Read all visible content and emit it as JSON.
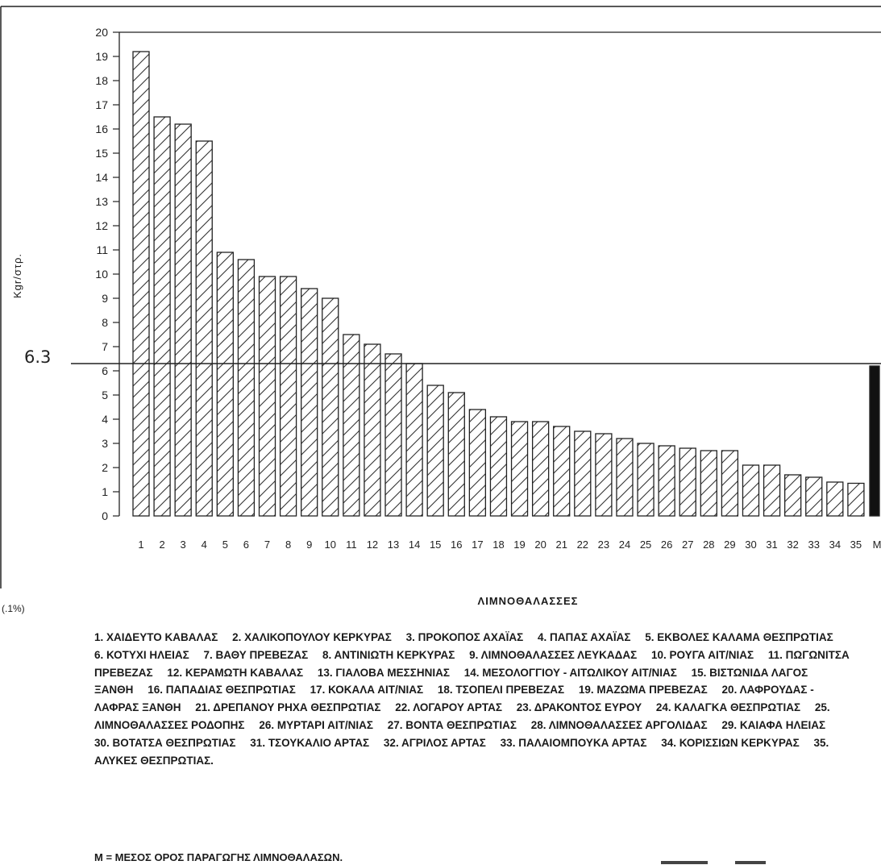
{
  "chart_data": {
    "type": "bar",
    "ylabel": "Kgr/στρ.",
    "xlabel": "ΛΙΜΝΟΘΑΛΑΣΣΕΣ",
    "ylim": [
      0,
      20
    ],
    "yticks": [
      0,
      1,
      2,
      3,
      4,
      5,
      6,
      7,
      8,
      9,
      10,
      11,
      12,
      13,
      14,
      15,
      16,
      17,
      18,
      19,
      20
    ],
    "categories": [
      "1",
      "2",
      "3",
      "4",
      "5",
      "6",
      "7",
      "8",
      "9",
      "10",
      "11",
      "12",
      "13",
      "14",
      "15",
      "16",
      "17",
      "18",
      "19",
      "20",
      "21",
      "22",
      "23",
      "24",
      "25",
      "26",
      "27",
      "28",
      "29",
      "30",
      "31",
      "32",
      "33",
      "34",
      "35",
      "M"
    ],
    "values": [
      19.2,
      16.5,
      16.2,
      15.5,
      10.9,
      10.6,
      9.9,
      9.9,
      9.4,
      9.0,
      7.5,
      7.1,
      6.7,
      6.3,
      5.4,
      5.1,
      4.4,
      4.1,
      3.9,
      3.9,
      3.7,
      3.5,
      3.4,
      3.2,
      3.0,
      2.9,
      2.8,
      2.7,
      2.7,
      2.1,
      2.1,
      1.7,
      1.6,
      1.4,
      1.35,
      6.2
    ],
    "reference_line": {
      "value": 6.3,
      "label": "6.3"
    },
    "grid": false,
    "side_note": "(.1%)",
    "legend": [
      "1. ΧΑΙΔΕΥΤΟ ΚΑΒΑΛΑΣ",
      "2. ΧΑΛΙΚΟΠΟΥΛΟΥ ΚΕΡΚΥΡΑΣ",
      "3. ΠΡΟΚΟΠΟΣ ΑΧΑΪΑΣ",
      "4. ΠΑΠΑΣ ΑΧΑΪΑΣ",
      "5. ΕΚΒΟΛΕΣ ΚΑΛΑΜΑ ΘΕΣΠΡΩΤΙΑΣ",
      "6. ΚΟΤΥΧΙ ΗΛΕΙΑΣ",
      "7. ΒΑΘΥ ΠΡΕΒΕΖΑΣ",
      "8. ΑΝΤΙΝΙΩΤΗ ΚΕΡΚΥΡΑΣ",
      "9. ΛΙΜΝΟΘΑΛΑΣΣΕΣ ΛΕΥΚΑΔΑΣ",
      "10. ΡΟΥΓΑ ΑΙΤ/ΝΙΑΣ",
      "11. ΠΩΓΩΝΙΤΣΑ ΠΡΕΒΕΖΑΣ",
      "12. ΚΕΡΑΜΩΤΗ ΚΑΒΑΛΑΣ",
      "13. ΓΙΑΛΟΒΑ ΜΕΣΣΗΝΙΑΣ",
      "14. ΜΕΣΟΛΟΓΓΙΟΥ - ΑΙΤΩΛΙΚΟΥ ΑΙΤ/ΝΙΑΣ",
      "15. ΒΙΣΤΩΝΙΔΑ ΛΑΓΟΣ ΞΑΝΘΗ",
      "16. ΠΑΠΑΔΙΑΣ ΘΕΣΠΡΩΤΙΑΣ",
      "17. ΚΟΚΑΛΑ ΑΙΤ/ΝΙΑΣ",
      "18. ΤΣΟΠΕΛΙ ΠΡΕΒΕΖΑΣ",
      "19. ΜΑΖΩΜΑ ΠΡΕΒΕΖΑΣ",
      "20. ΛΑΦΡΟΥΔΑΣ - ΛΑΦΡΑΣ ΞΑΝΘΗ",
      "21. ΔΡΕΠΑΝΟΥ ΡΗΧΑ ΘΕΣΠΡΩΤΙΑΣ",
      "22. ΛΟΓΑΡΟΥ ΑΡΤΑΣ",
      "23. ΔΡΑΚΟΝΤΟΣ ΕΥΡΟΥ",
      "24. ΚΑΛΑΓΚΑ ΘΕΣΠΡΩΤΙΑΣ",
      "25. ΛΙΜΝΟΘΑΛΑΣΣΕΣ ΡΟΔΟΠΗΣ",
      "26. ΜΥΡΤΑΡΙ ΑΙΤ/ΝΙΑΣ",
      "27. ΒΟΝΤΑ ΘΕΣΠΡΩΤΙΑΣ",
      "28. ΛΙΜΝΟΘΑΛΑΣΣΕΣ ΑΡΓΟΛΙΔΑΣ",
      "29. ΚΑΙΑΦΑ ΗΛΕΙΑΣ",
      "30. ΒΟΤΑΤΣΑ ΘΕΣΠΡΩΤΙΑΣ",
      "31. ΤΣΟΥΚΑΛΙΟ ΑΡΤΑΣ",
      "32. ΑΓΡΙΛΟΣ ΑΡΤΑΣ",
      "33. ΠΑΛΑΙΟΜΠΟΥΚΑ ΑΡΤΑΣ",
      "34. ΚΟΡΙΣΣΙΩΝ ΚΕΡΚΥΡΑΣ",
      "35. ΑΛΥΚΕΣ ΘΕΣΠΡΩΤΙΑΣ."
    ],
    "mean_note": "M = ΜΕΣΟΣ ΟΡΟΣ ΠΑΡΑΓΩΓΗΣ ΛΙΜΝΟΘΑΛΑΣΩΝ."
  }
}
